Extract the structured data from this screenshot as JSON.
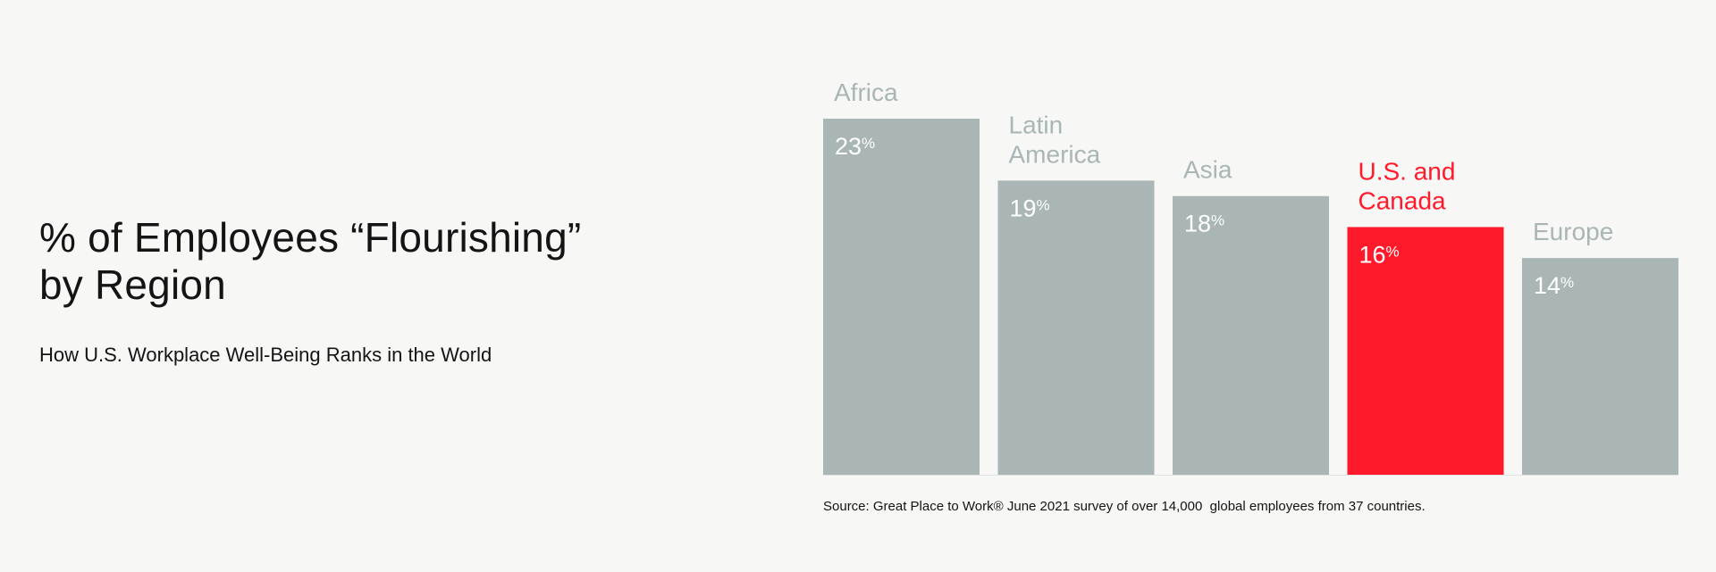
{
  "chart_title_lines": [
    "% of Employees “Flourishing”",
    "by Region"
  ],
  "chart_subtitle": "How U.S. Workplace Well-Being Ranks in the World",
  "source_note": "Source: Great Place to Work® June 2021 survey of over 14,000  global employees from 37 countries.",
  "colors": {
    "default_bar": "#aab6b6",
    "highlight_bar": "#ff1a2b",
    "category_label": "#aab6b6",
    "highlight_label": "#ff1a2b",
    "value_label": "#ffffff",
    "baseline": "#e2e4e4",
    "background": "#f7f7f6",
    "text": "#141414"
  },
  "chart_data": {
    "type": "bar",
    "title": "% of Employees “Flourishing” by Region",
    "subtitle": "How U.S. Workplace Well-Being Ranks in the World",
    "xlabel": "",
    "ylabel": "",
    "ylim": [
      0,
      23
    ],
    "grid": false,
    "unit": "%",
    "categories": [
      [
        "Africa"
      ],
      [
        "Latin",
        "America"
      ],
      [
        "Asia"
      ],
      [
        "U.S. and",
        "Canada"
      ],
      [
        "Europe"
      ]
    ],
    "values": [
      23,
      19,
      18,
      16,
      14
    ],
    "value_labels": [
      "23",
      "19",
      "18",
      "16",
      "14"
    ],
    "highlight_index": 3
  }
}
